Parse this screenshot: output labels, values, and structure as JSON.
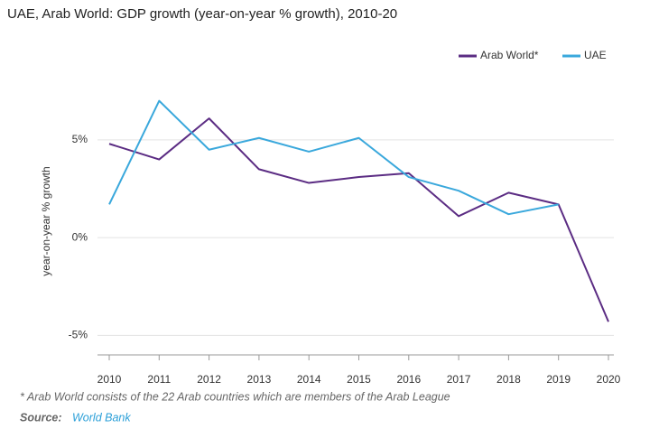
{
  "chart_data": {
    "type": "line",
    "title": "UAE, Arab World: GDP growth (year-on-year % growth), 2010-20",
    "y_label": "year-on-year % growth",
    "categories": [
      "2010",
      "2011",
      "2012",
      "2013",
      "2014",
      "2015",
      "2016",
      "2017",
      "2018",
      "2019",
      "2020"
    ],
    "series": [
      {
        "name": "Arab World*",
        "color": "#5b2c83",
        "values": [
          4.8,
          4.0,
          6.1,
          3.5,
          2.8,
          3.1,
          3.3,
          1.1,
          2.3,
          1.7,
          -4.3
        ]
      },
      {
        "name": "UAE",
        "color": "#3aa8dc",
        "values": [
          1.7,
          7.0,
          4.5,
          5.1,
          4.4,
          5.1,
          3.1,
          2.4,
          1.2,
          1.7,
          null
        ]
      }
    ],
    "ylim": [
      -6,
      8
    ],
    "yticks": [
      {
        "value": -5,
        "label": "-5%"
      },
      {
        "value": 0,
        "label": "0%"
      },
      {
        "value": 5,
        "label": "5%"
      }
    ],
    "grid": true,
    "legend": "top-right",
    "note": "* Arab World consists of the 22 Arab countries which are members of the Arab League",
    "source_label": "Source:",
    "source": "World Bank"
  }
}
